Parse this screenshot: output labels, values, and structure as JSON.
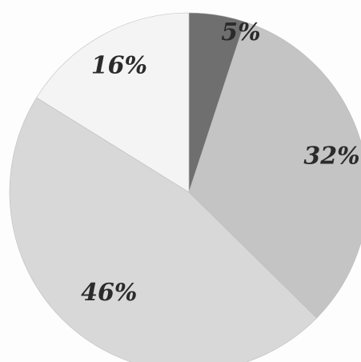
{
  "chart_data": {
    "type": "pie",
    "start_angle_deg": 0,
    "direction": "clockwise",
    "slices": [
      {
        "label": "5%",
        "value": 5,
        "color": "#6f6f6f"
      },
      {
        "label": "32%",
        "value": 32,
        "color": "#c4c4c4"
      },
      {
        "label": "46%",
        "value": 46,
        "color": "#d8d8d8"
      },
      {
        "label": "16%",
        "value": 16,
        "color": "#f4f4f4"
      }
    ]
  }
}
